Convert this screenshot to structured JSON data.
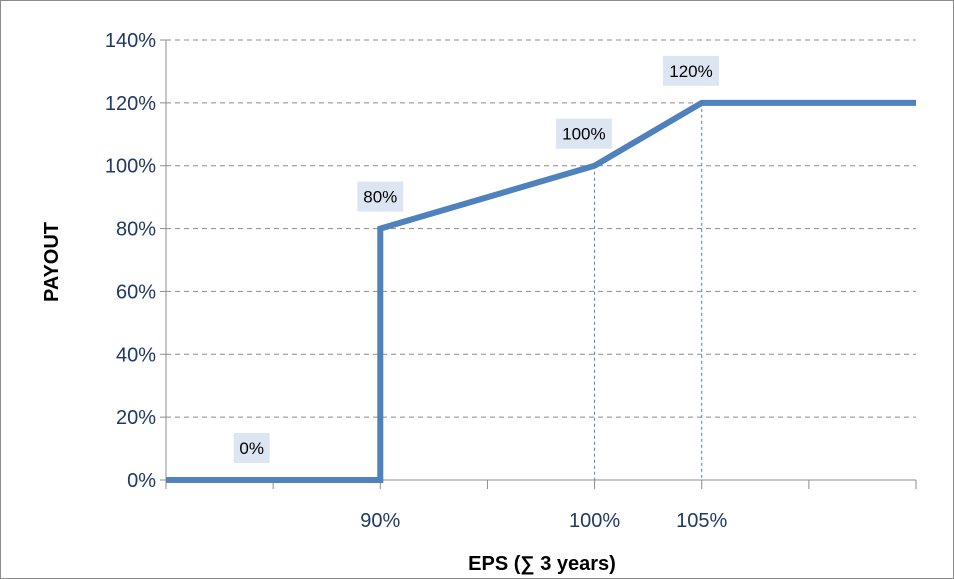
{
  "chart_data": {
    "type": "line",
    "xlabel": "EPS (∑ 3 years)",
    "ylabel": "PAYOUT",
    "xlim": [
      80,
      115
    ],
    "ylim": [
      0,
      140
    ],
    "y_ticks": [
      0,
      20,
      40,
      60,
      80,
      100,
      120,
      140
    ],
    "y_tick_labels": [
      "0%",
      "20%",
      "40%",
      "60%",
      "80%",
      "100%",
      "120%",
      "140%"
    ],
    "x_ticks": [
      80,
      85,
      90,
      95,
      100,
      105,
      110,
      115
    ],
    "x_tick_labels": [
      {
        "x": 90,
        "label": "90%"
      },
      {
        "x": 100,
        "label": "100%"
      },
      {
        "x": 105,
        "label": "105%"
      }
    ],
    "series": [
      {
        "points": [
          [
            80,
            0
          ],
          [
            90,
            0
          ],
          [
            90,
            80
          ],
          [
            100,
            100
          ],
          [
            105,
            120
          ],
          [
            115,
            120
          ]
        ],
        "color": "#4f81bd"
      }
    ],
    "drop_lines": [
      {
        "x": 100,
        "y": 100
      },
      {
        "x": 105,
        "y": 120
      }
    ],
    "data_labels": [
      {
        "x": 84,
        "y": 0,
        "text": "0%"
      },
      {
        "x": 90,
        "y": 80,
        "text": "80%"
      },
      {
        "x": 99.5,
        "y": 100,
        "text": "100%"
      },
      {
        "x": 104.5,
        "y": 120,
        "text": "120%"
      }
    ],
    "grid": true,
    "gridline_style": "dashed",
    "gridline_color": "#8c8c8c",
    "label_box_color": "#dce6f2",
    "drop_line_color": "#4f81bd"
  }
}
